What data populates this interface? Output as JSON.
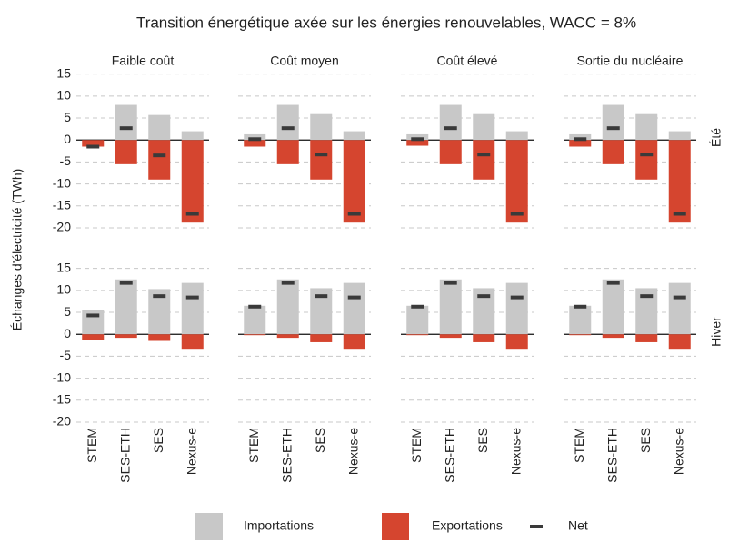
{
  "chart_data": {
    "type": "bar",
    "title": "Transition énergétique axée sur les énergies renouvelables, WACC = 8%",
    "ylabel": "Échanges d'électricité (TWh)",
    "columns": [
      "Faible coût",
      "Coût moyen",
      "Coût élevé",
      "Sortie du nucléaire"
    ],
    "rows": [
      "Été",
      "Hiver"
    ],
    "categories": [
      "STEM",
      "SES-ETH",
      "SES",
      "Nexus-e"
    ],
    "ylim": [
      -20,
      17
    ],
    "yticks": [
      -20,
      -15,
      -10,
      -5,
      0,
      5,
      10,
      15
    ],
    "grid": true,
    "series": [
      {
        "name": "Importations",
        "color": "#c8c8c8",
        "values": [
          [
            [
              0,
              8,
              5.7,
              2
            ],
            [
              1.3,
              8,
              5.9,
              2
            ],
            [
              1.3,
              8,
              5.9,
              2
            ],
            [
              1.3,
              8,
              5.9,
              2
            ]
          ],
          [
            [
              5.5,
              12.5,
              10.3,
              11.7
            ],
            [
              6.5,
              12.5,
              10.5,
              11.7
            ],
            [
              6.5,
              12.5,
              10.5,
              11.7
            ],
            [
              6.5,
              12.5,
              10.5,
              11.7
            ]
          ]
        ]
      },
      {
        "name": "Exportations",
        "color": "#d5452f",
        "values": [
          [
            [
              -1.5,
              -5.5,
              -9,
              -18.8
            ],
            [
              -1.5,
              -5.5,
              -9,
              -18.8
            ],
            [
              -1.3,
              -5.5,
              -9,
              -18.8
            ],
            [
              -1.5,
              -5.5,
              -9,
              -18.8
            ]
          ],
          [
            [
              -1.2,
              -0.8,
              -1.5,
              -3.3
            ],
            [
              -0.2,
              -0.8,
              -1.8,
              -3.3
            ],
            [
              -0.2,
              -0.8,
              -1.8,
              -3.3
            ],
            [
              -0.2,
              -0.8,
              -1.8,
              -3.3
            ]
          ]
        ]
      },
      {
        "name": "Net",
        "color": "#3a3a3a",
        "values": [
          [
            [
              -1.5,
              2.7,
              -3.5,
              -16.8
            ],
            [
              0.2,
              2.7,
              -3.3,
              -16.8
            ],
            [
              0.2,
              2.7,
              -3.3,
              -16.8
            ],
            [
              0.2,
              2.7,
              -3.3,
              -16.8
            ]
          ],
          [
            [
              4.3,
              11.7,
              8.7,
              8.4
            ],
            [
              6.3,
              11.7,
              8.7,
              8.4
            ],
            [
              6.3,
              11.7,
              8.7,
              8.4
            ],
            [
              6.3,
              11.7,
              8.7,
              8.4
            ]
          ]
        ]
      }
    ]
  }
}
